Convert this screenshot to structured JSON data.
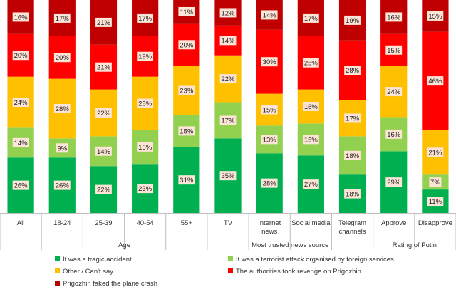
{
  "chart_data": {
    "type": "bar",
    "stacked": true,
    "normalized": true,
    "categories": [
      "All",
      "18-24",
      "25-39",
      "40-54",
      "55+",
      "TV",
      "Internet news",
      "Social media",
      "Telegram channels",
      "Approve",
      "Disapprove"
    ],
    "category_lines": [
      [
        "All"
      ],
      [
        "18-24"
      ],
      [
        "25-39"
      ],
      [
        "40-54"
      ],
      [
        "55+"
      ],
      [
        "TV"
      ],
      [
        "Internet",
        "news"
      ],
      [
        "Social media"
      ],
      [
        "Telegram",
        "channels"
      ],
      [
        "Approve"
      ],
      [
        "Disapprove"
      ]
    ],
    "groups": [
      {
        "label": "",
        "categories": [
          "All"
        ]
      },
      {
        "label": "Age",
        "categories": [
          "18-24",
          "25-39",
          "40-54",
          "55+"
        ]
      },
      {
        "label": "Most trusted news source",
        "categories": [
          "TV",
          "Internet news",
          "Social media",
          "Telegram channels"
        ]
      },
      {
        "label": "Rating of Putin",
        "categories": [
          "Approve",
          "Disapprove"
        ]
      }
    ],
    "series": [
      {
        "name": "It was a tragic accident",
        "color": "#00b050",
        "values": [
          26,
          26,
          22,
          23,
          31,
          35,
          28,
          27,
          18,
          29,
          11
        ]
      },
      {
        "name": "It was a terrorist attack organised by foreign services",
        "color": "#92d050",
        "values": [
          14,
          9,
          14,
          16,
          15,
          17,
          13,
          15,
          18,
          16,
          7
        ]
      },
      {
        "name": "Other / Can't say",
        "color": "#ffc000",
        "values": [
          24,
          28,
          22,
          25,
          23,
          22,
          15,
          16,
          17,
          24,
          21
        ]
      },
      {
        "name": "The authorities took revenge on Prigozhin",
        "color": "#ff0000",
        "values": [
          20,
          20,
          21,
          19,
          20,
          14,
          30,
          25,
          28,
          15,
          46
        ]
      },
      {
        "name": "Prigozhin faked the plane crash",
        "color": "#c00000",
        "values": [
          16,
          17,
          21,
          17,
          11,
          12,
          14,
          17,
          19,
          16,
          15
        ]
      }
    ],
    "data_labels": true,
    "label_box_color": "#fce4d6",
    "legend_position": "bottom",
    "grid": false
  }
}
